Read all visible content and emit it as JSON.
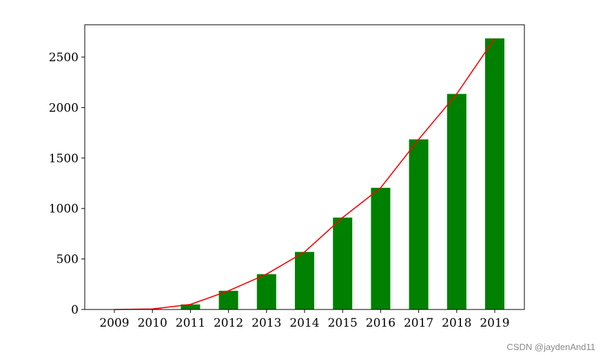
{
  "chart_data": {
    "type": "bar",
    "categories": [
      "2009",
      "2010",
      "2011",
      "2012",
      "2013",
      "2014",
      "2015",
      "2016",
      "2017",
      "2018",
      "2019"
    ],
    "series": [
      {
        "type": "bar",
        "values": [
          0,
          5,
          50,
          185,
          350,
          570,
          910,
          1205,
          1685,
          2135,
          2685
        ],
        "color": "#008000"
      },
      {
        "type": "line",
        "values": [
          0,
          5,
          50,
          185,
          350,
          570,
          910,
          1205,
          1685,
          2135,
          2685
        ],
        "color": "#ff0000"
      }
    ],
    "yticks": [
      0,
      500,
      1000,
      1500,
      2000,
      2500
    ],
    "ylim": [
      0,
      2820
    ],
    "title": "",
    "xlabel": "",
    "ylabel": "",
    "grid": false
  },
  "watermark": "CSDN @jaydenAnd11"
}
